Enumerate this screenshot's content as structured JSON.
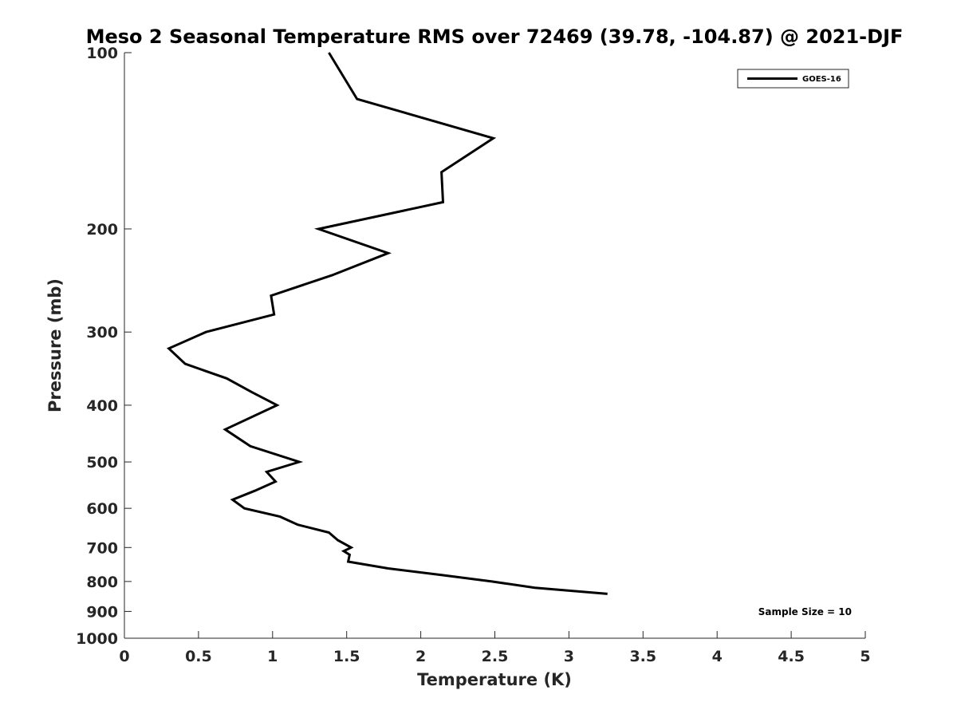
{
  "chart_data": {
    "type": "line",
    "title": "Meso 2 Seasonal Temperature RMS over 72469 (39.78, -104.87) @ 2021-DJF",
    "xlabel": "Temperature (K)",
    "ylabel": "Pressure (mb)",
    "xlim": [
      0,
      5
    ],
    "ylim": [
      1000,
      100
    ],
    "y_scale": "log",
    "x_ticks": [
      0,
      0.5,
      1,
      1.5,
      2,
      2.5,
      3,
      3.5,
      4,
      4.5,
      5
    ],
    "x_tick_labels": [
      "0",
      "0.5",
      "1",
      "1.5",
      "2",
      "2.5",
      "3",
      "3.5",
      "4",
      "4.5",
      "5"
    ],
    "y_ticks": [
      100,
      200,
      300,
      400,
      500,
      600,
      700,
      800,
      900,
      1000
    ],
    "y_tick_labels": [
      "100",
      "200",
      "300",
      "400",
      "500",
      "600",
      "700",
      "800",
      "900",
      "1000"
    ],
    "grid": false,
    "legend_position": "top-right",
    "annotation": "Sample Size = 10",
    "series": [
      {
        "name": "GOES-16",
        "color": "#000000",
        "points": [
          {
            "x": 1.38,
            "p": 100
          },
          {
            "x": 1.57,
            "p": 120
          },
          {
            "x": 2.49,
            "p": 140
          },
          {
            "x": 2.14,
            "p": 160
          },
          {
            "x": 2.15,
            "p": 180
          },
          {
            "x": 1.31,
            "p": 200
          },
          {
            "x": 1.78,
            "p": 220
          },
          {
            "x": 1.4,
            "p": 240
          },
          {
            "x": 0.99,
            "p": 260
          },
          {
            "x": 1.01,
            "p": 280
          },
          {
            "x": 0.55,
            "p": 300
          },
          {
            "x": 0.3,
            "p": 320
          },
          {
            "x": 0.41,
            "p": 340
          },
          {
            "x": 0.69,
            "p": 360
          },
          {
            "x": 0.86,
            "p": 380
          },
          {
            "x": 1.03,
            "p": 400
          },
          {
            "x": 0.68,
            "p": 440
          },
          {
            "x": 0.85,
            "p": 470
          },
          {
            "x": 1.18,
            "p": 500
          },
          {
            "x": 0.96,
            "p": 520
          },
          {
            "x": 1.02,
            "p": 540
          },
          {
            "x": 0.88,
            "p": 560
          },
          {
            "x": 0.73,
            "p": 580
          },
          {
            "x": 0.81,
            "p": 600
          },
          {
            "x": 1.05,
            "p": 620
          },
          {
            "x": 1.17,
            "p": 640
          },
          {
            "x": 1.38,
            "p": 660
          },
          {
            "x": 1.44,
            "p": 680
          },
          {
            "x": 1.53,
            "p": 700
          },
          {
            "x": 1.48,
            "p": 710
          },
          {
            "x": 1.52,
            "p": 720
          },
          {
            "x": 1.51,
            "p": 740
          },
          {
            "x": 1.78,
            "p": 760
          },
          {
            "x": 2.14,
            "p": 780
          },
          {
            "x": 2.48,
            "p": 800
          },
          {
            "x": 2.77,
            "p": 820
          },
          {
            "x": 3.26,
            "p": 840
          }
        ]
      }
    ]
  }
}
